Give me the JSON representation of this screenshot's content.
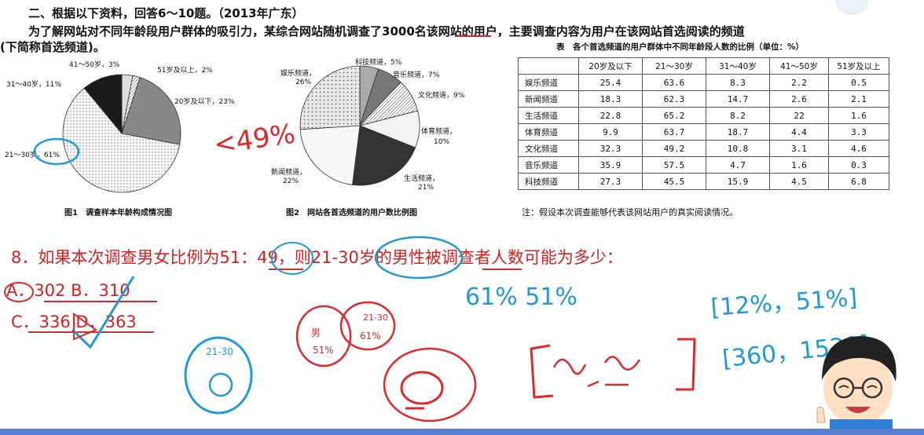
{
  "header": {
    "line1": "二、根据以下资料，回答6～10题。（2013年广东）",
    "line2": "为了解网站对不同年龄段用户群体的吸引力，某综合网站随机调查了3000名该网站的用户，主要调查内容为用户在该网站首选阅读的频道",
    "line3": "(下简称首选频道)。"
  },
  "fig1": {
    "caption": "图1　调查样本年龄构成情况图",
    "labels": [
      "41～50岁，3%",
      "51岁及以上，2%",
      "31～40岁，11%",
      "20岁及以下，23%",
      "21～30岁，61%"
    ],
    "colors": [
      "#1a1a1a",
      "#dddddd",
      "#888888",
      "#f3f3f3",
      "#777777"
    ]
  },
  "fig2": {
    "caption": "图2　网站各首选频道的用户数比例图",
    "labels": [
      "娱乐频道，",
      "26%",
      "科技频道，5%",
      "音乐频道，7%",
      "文化频道，9%",
      "体育频道，",
      "10%",
      "生活频道，",
      "21%",
      "新闻频道，",
      "22%"
    ]
  },
  "table": {
    "title": "表　各个首选频道的用户群体中不同年龄段人数的比例（单位：%）",
    "columns": [
      "",
      "20岁及以下",
      "21～30岁",
      "31～40岁",
      "41～50岁",
      "51岁及以上"
    ],
    "rows": [
      [
        "娱乐频道",
        "25.4",
        "63.6",
        "8.3",
        "2.2",
        "0.5"
      ],
      [
        "新闻频道",
        "18.3",
        "62.3",
        "14.7",
        "2.6",
        "2.1"
      ],
      [
        "生活频道",
        "22.8",
        "65.2",
        "8.2",
        "22",
        "1.6"
      ],
      [
        "体育频道",
        "9.9",
        "63.7",
        "18.7",
        "4.4",
        "3.3"
      ],
      [
        "文化频道",
        "32.3",
        "49.2",
        "10.8",
        "3.1",
        "4.6"
      ],
      [
        "音乐频道",
        "35.9",
        "57.5",
        "4.7",
        "1.6",
        "0.3"
      ],
      [
        "科技频道",
        "27.3",
        "45.5",
        "15.9",
        "4.5",
        "6.8"
      ]
    ],
    "note": "注：假设本次调查能够代表该网站用户的真实阅读情况。"
  },
  "question": {
    "text": "8．如果本次调查男女比例为51：49，则21-30岁的男性被调查者人数可能为多少：",
    "optA": "A．302 B．310",
    "optC": "C．336 D．363"
  },
  "annotations": {
    "red_pct": "<49%",
    "blue_pct": "61%  51%",
    "blue_range1": "[12%，51%]",
    "blue_range2": "[360，1530]",
    "blue_circle_label": "21-30",
    "red_circle_left_top": "男",
    "red_circle_left_bottom": "51%",
    "red_circle_right_top": "21-30",
    "red_circle_right_bottom": "61%"
  },
  "colors": {
    "red_ink": "#e0282a",
    "blue_ink": "#1e9ad6",
    "question_red": "#d42020",
    "bottom_bar": "#5a7fd0"
  }
}
